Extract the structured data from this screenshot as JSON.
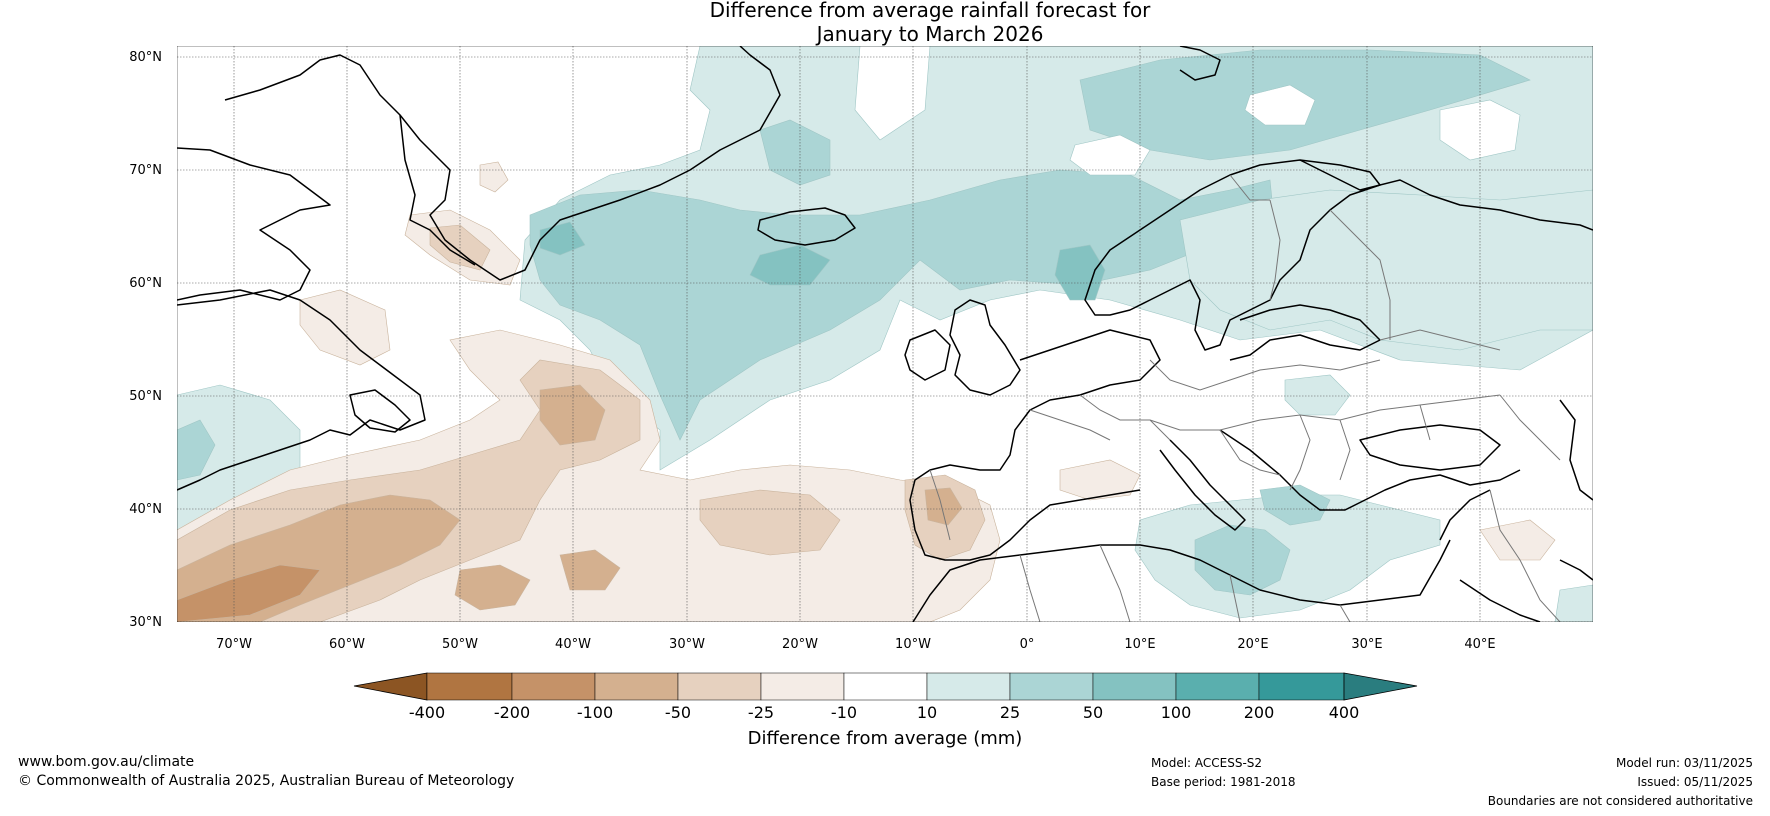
{
  "title": {
    "line1": "Difference from average rainfall forecast for",
    "line2": "January to March 2026"
  },
  "map": {
    "latitude_labels": [
      "80°N",
      "70°N",
      "60°N",
      "50°N",
      "40°N",
      "30°N"
    ],
    "longitude_labels": [
      "70°W",
      "60°W",
      "50°W",
      "40°W",
      "30°W",
      "20°W",
      "10°W",
      "0°",
      "10°E",
      "20°E",
      "30°E",
      "40°E"
    ],
    "extent": {
      "lon": [
        -75,
        50
      ],
      "lat": [
        30,
        81
      ]
    }
  },
  "colorbar": {
    "label": "Difference from average (mm)",
    "ticks": [
      "-400",
      "-200",
      "-100",
      "-50",
      "-25",
      "-10",
      "10",
      "25",
      "50",
      "100",
      "200",
      "400"
    ],
    "colors": {
      "below_min": "#8c5523",
      "bins": [
        "#b07541",
        "#c59268",
        "#d4b08f",
        "#e6d1bf",
        "#f4ece6",
        "#ffffff",
        "#d6eae9",
        "#abd5d5",
        "#84c2c1",
        "#5aafae",
        "#35999a"
      ],
      "above_max": "#2a7d7f"
    }
  },
  "footer": {
    "website": "www.bom.gov.au/climate",
    "copyright": "© Commonwealth of Australia 2025, Australian Bureau of Meteorology",
    "model": "Model: ACCESS-S2",
    "base_period": "Base period: 1981-2018",
    "model_run": "Model run: 03/11/2025",
    "issued": "Issued: 05/11/2025",
    "disclaimer": "Boundaries are not considered authoritative"
  }
}
